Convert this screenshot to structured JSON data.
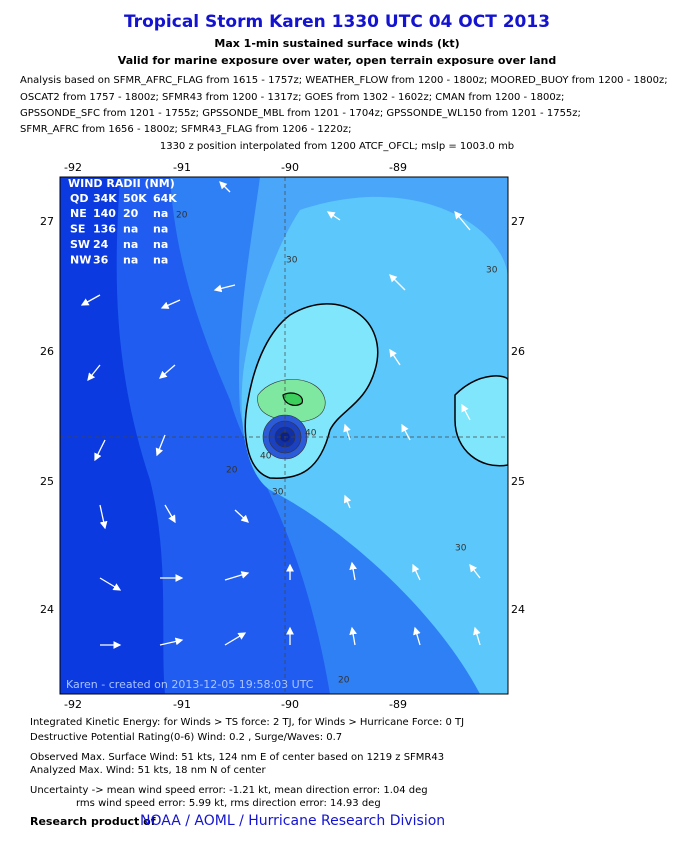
{
  "header": {
    "title": "Tropical Storm Karen 1330 UTC 04 OCT 2013",
    "subtitle": "Max 1-min sustained surface winds (kt)",
    "validity": "Valid for marine exposure over water, open terrain exposure over land",
    "analysis_lines": [
      "Analysis based on SFMR_AFRC_FLAG from 1615 - 1757z; WEATHER_FLOW from 1200 - 1800z; MOORED_BUOY from 1200 - 1800z;",
      "OSCAT2 from 1757 - 1800z; SFMR43 from 1200 - 1317z; GOES from 1302 - 1602z; CMAN from 1200 - 1800z;",
      "GPSSONDE_SFC from 1201 - 1755z; GPSSONDE_MBL from 1201 - 1704z; GPSSONDE_WL150 from 1201 - 1755z;",
      "SFMR_AFRC from 1656 - 1800z; SFMR43_FLAG from 1206 - 1220z;"
    ],
    "position_note": "1330 z position interpolated from 1200 ATCF_OFCL; mslp = 1003.0 mb"
  },
  "map": {
    "lon_labels": [
      "-92",
      "-91",
      "-90",
      "-89"
    ],
    "lat_labels": [
      "27",
      "26",
      "25",
      "24"
    ],
    "contour_labels": [
      "20",
      "30",
      "30",
      "30",
      "20",
      "30",
      "40",
      "40",
      "20"
    ],
    "wind_radii": {
      "title": "WIND RADII (NM)",
      "header": [
        "QD",
        "34K",
        "50K",
        "64K"
      ],
      "rows": [
        [
          "NE",
          "140",
          "20",
          "na"
        ],
        [
          "SE",
          "136",
          "na",
          "na"
        ],
        [
          "SW",
          "24",
          "na",
          "na"
        ],
        [
          "NW",
          "36",
          "na",
          "na"
        ]
      ]
    },
    "credit": "Karen - created on 2013-12-05 19:58:03 UTC"
  },
  "footer": {
    "lines": [
      "Integrated Kinetic Energy: for Winds > TS force: 2 TJ, for Winds > Hurricane Force: 0 TJ",
      "Destructive Potential Rating(0-6)  Wind: 0.2 , Surge/Waves: 0.7",
      "Observed Max. Surface Wind: 51 kts, 124 nm E of center based on 1219 z SFMR43",
      "Analyzed Max. Wind: 51 kts, 18 nm  N of center",
      "Uncertainty -> mean wind speed error:  -1.21 kt, mean direction error: 1.04 deg",
      "rms wind speed error: 5.99 kt, rms direction error: 14.93 deg"
    ],
    "research_prefix": "Research product of",
    "research_link": "NOAA / AOML / Hurricane Research Division"
  }
}
